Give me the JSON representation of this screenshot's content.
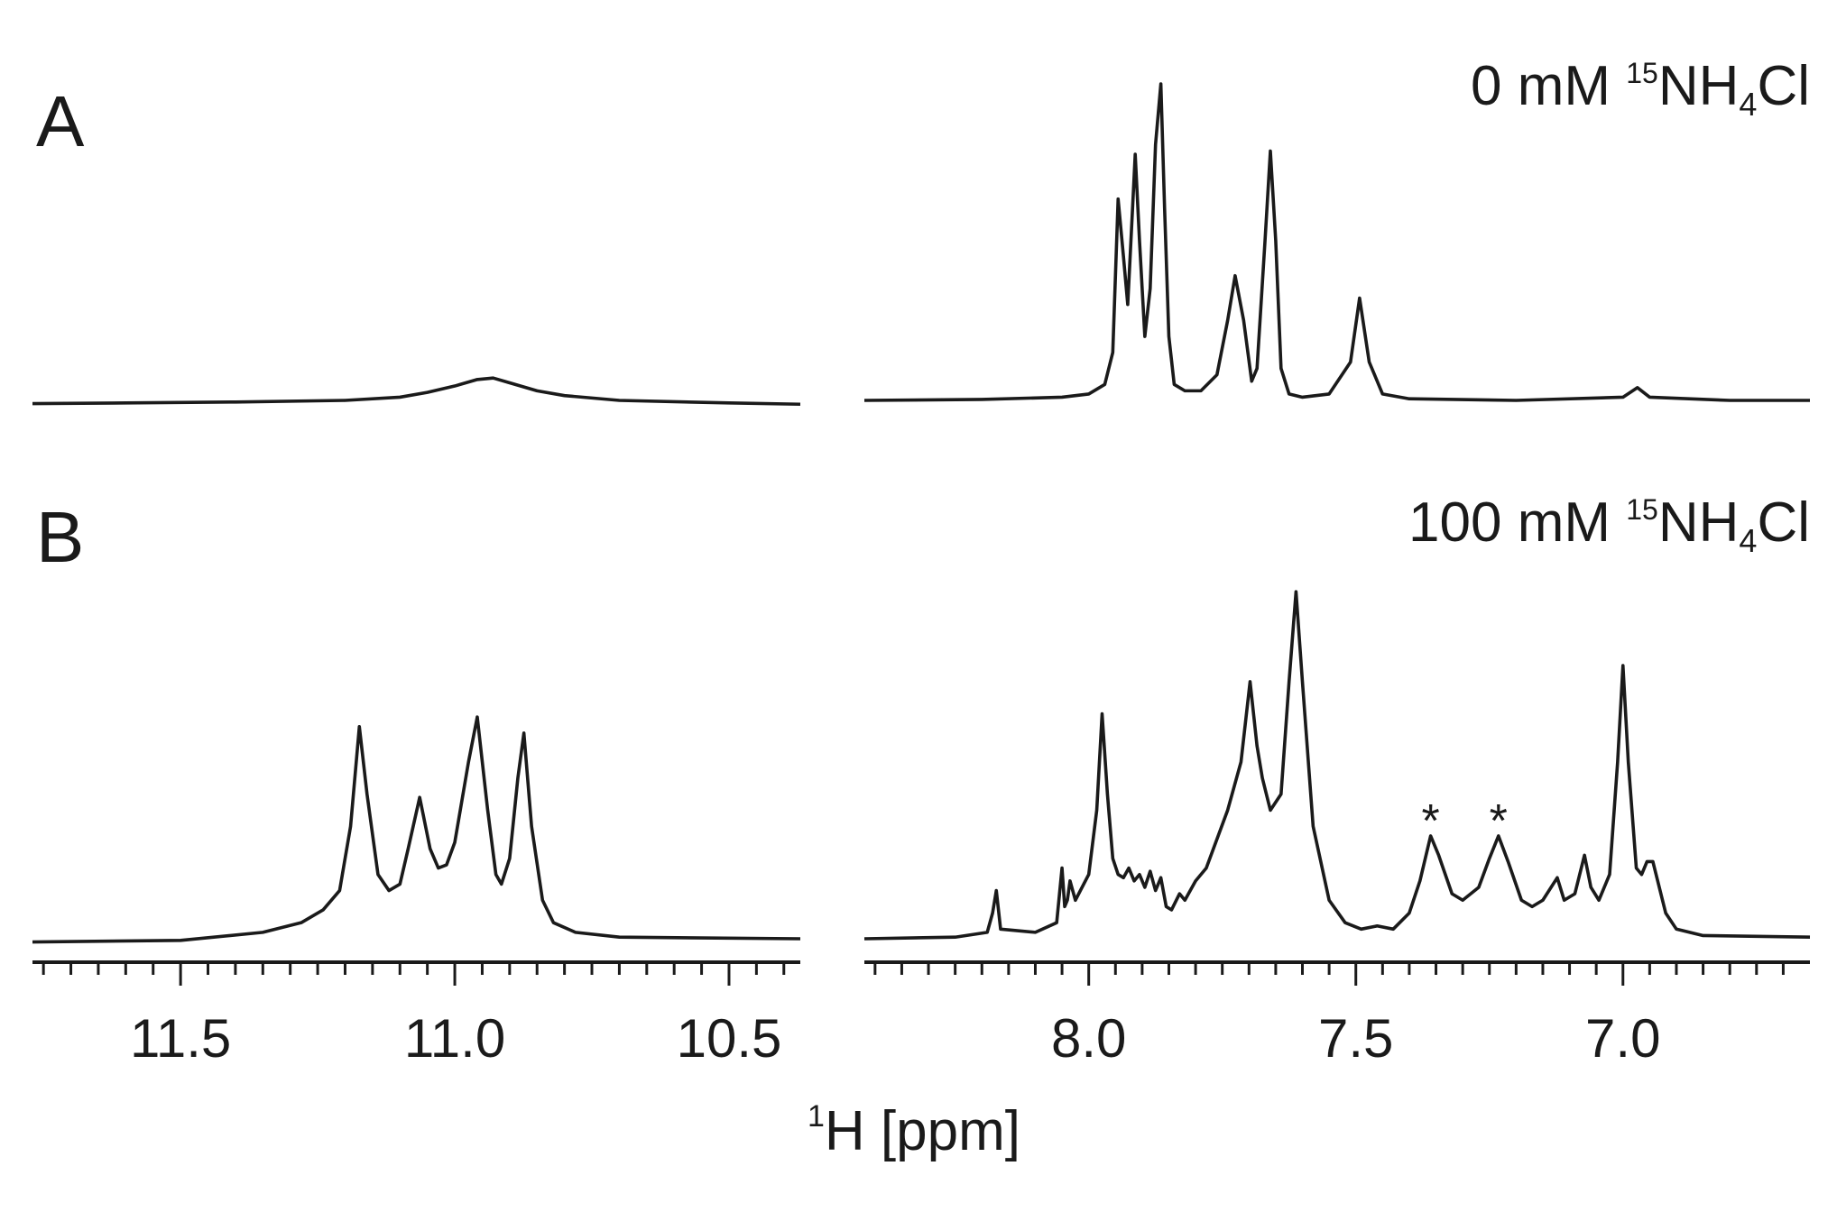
{
  "chart_data": {
    "type": "line",
    "color": "#1a1a1a",
    "xlabel_parts": [
      "1",
      "H [ppm]"
    ],
    "xaxis": [
      {
        "xlim": [
          11.77,
          10.37
        ],
        "xticks": [
          11.5,
          {
            "value": 11,
            "label": "11.0"
          },
          10.5
        ],
        "xminor": [
          11.75,
          11.7,
          11.65,
          11.6,
          11.55,
          11.45,
          11.4,
          11.35,
          11.3,
          11.25,
          11.2,
          11.15,
          11.1,
          11.05,
          10.95,
          10.9,
          10.85,
          10.8,
          10.75,
          10.7,
          10.65,
          10.6,
          10.55,
          10.45,
          10.4
        ]
      },
      {
        "xlim": [
          8.42,
          6.65
        ],
        "xticks": [
          {
            "value": 8,
            "label": "8.0"
          },
          7.5,
          {
            "value": 7,
            "label": "7.0"
          }
        ],
        "xminor": [
          8.4,
          8.35,
          8.3,
          8.25,
          8.2,
          8.15,
          8.1,
          8.05,
          7.95,
          7.9,
          7.85,
          7.8,
          7.75,
          7.7,
          7.65,
          7.6,
          7.55,
          7.45,
          7.4,
          7.35,
          7.3,
          7.25,
          7.2,
          7.15,
          7.1,
          7.05,
          6.95,
          6.9,
          6.85,
          6.8,
          6.75,
          6.7
        ]
      }
    ],
    "panels": [
      {
        "label": "A",
        "title_parts": [
          "0 mM ",
          "15",
          "NH",
          "4",
          "Cl"
        ],
        "ylim": [
          0,
          100
        ],
        "segments": [
          {
            "x": [
              11.77,
              11.6,
              11.4,
              11.2,
              11.1,
              11.05,
              11.0,
              10.96,
              10.93,
              10.9,
              10.85,
              10.8,
              10.7,
              10.5,
              10.37
            ],
            "values": [
              -1,
              -0.8,
              -0.5,
              0,
              1,
              2.5,
              4.5,
              6.5,
              7,
              5.5,
              3,
              1.5,
              0,
              -0.8,
              -1.2
            ]
          },
          {
            "x": [
              8.42,
              8.2,
              8.05,
              8.0,
              7.97,
              7.955,
              7.945,
              7.935,
              7.927,
              7.918,
              7.913,
              7.905,
              7.895,
              7.885,
              7.875,
              7.865,
              7.858,
              7.85,
              7.84,
              7.82,
              7.79,
              7.76,
              7.74,
              7.726,
              7.71,
              7.695,
              7.685,
              7.67,
              7.66,
              7.65,
              7.64,
              7.625,
              7.6,
              7.55,
              7.51,
              7.493,
              7.475,
              7.45,
              7.4,
              7.2,
              7.0,
              6.973,
              6.95,
              6.8,
              6.65
            ],
            "values": [
              0,
              0.3,
              1,
              2,
              5,
              15,
              63,
              45,
              30,
              60,
              77,
              50,
              20,
              35,
              80,
              99,
              60,
              20,
              5,
              3,
              3,
              8,
              25,
              39,
              25,
              6,
              10,
              50,
              78,
              50,
              10,
              2,
              1,
              2,
              12,
              32,
              12,
              2,
              0.5,
              0,
              1,
              4,
              1,
              0,
              0
            ]
          }
        ]
      },
      {
        "label": "B",
        "title_parts": [
          "100 mM ",
          "15",
          "NH",
          "4",
          "Cl"
        ],
        "ylim": [
          0,
          110
        ],
        "annotations": [
          {
            "text": "*",
            "x": 7.36
          },
          {
            "text": "*",
            "x": 7.233
          }
        ],
        "segments": [
          {
            "x": [
              11.77,
              11.5,
              11.35,
              11.28,
              11.24,
              11.21,
              11.19,
              11.174,
              11.16,
              11.14,
              11.12,
              11.1,
              11.085,
              11.064,
              11.045,
              11.03,
              11.015,
              11.0,
              10.975,
              10.959,
              10.94,
              10.925,
              10.915,
              10.9,
              10.885,
              10.874,
              10.86,
              10.84,
              10.82,
              10.78,
              10.7,
              10.37
            ],
            "values": [
              -1,
              -0.5,
              2,
              5,
              9,
              15,
              35,
              66,
              45,
              20,
              15,
              17,
              28,
              44,
              28,
              22,
              23,
              30,
              55,
              69,
              40,
              20,
              17,
              25,
              50,
              64,
              35,
              12,
              5,
              2,
              0.5,
              0
            ]
          },
          {
            "x": [
              8.42,
              8.25,
              8.19,
              8.18,
              8.173,
              8.165,
              8.1,
              8.06,
              8.05,
              8.045,
              8.04,
              8.035,
              8.025,
              8.0,
              7.985,
              7.975,
              7.965,
              7.955,
              7.945,
              7.935,
              7.925,
              7.915,
              7.905,
              7.895,
              7.885,
              7.875,
              7.865,
              7.855,
              7.845,
              7.83,
              7.82,
              7.8,
              7.78,
              7.74,
              7.715,
              7.698,
              7.685,
              7.675,
              7.66,
              7.64,
              7.625,
              7.612,
              7.6,
              7.58,
              7.55,
              7.52,
              7.49,
              7.46,
              7.43,
              7.4,
              7.38,
              7.36,
              7.345,
              7.32,
              7.3,
              7.27,
              7.25,
              7.233,
              7.215,
              7.19,
              7.17,
              7.15,
              7.123,
              7.11,
              7.09,
              7.072,
              7.06,
              7.045,
              7.025,
              7.01,
              7.0,
              6.99,
              6.975,
              6.965,
              6.955,
              6.944,
              6.935,
              6.92,
              6.9,
              6.85,
              6.65
            ],
            "values": [
              0,
              0.5,
              2,
              8,
              15,
              3,
              2,
              5,
              22,
              10,
              12,
              18,
              12,
              20,
              40,
              70,
              45,
              25,
              20,
              19,
              22,
              18,
              20,
              16,
              21,
              15,
              19,
              10,
              9,
              14,
              12,
              18,
              22,
              40,
              55,
              80,
              60,
              50,
              40,
              45,
              80,
              108,
              80,
              35,
              12,
              5,
              3,
              4,
              3,
              8,
              18,
              32,
              26,
              14,
              12,
              16,
              25,
              32,
              24,
              12,
              10,
              12,
              19,
              12,
              14,
              26,
              16,
              12,
              20,
              55,
              85,
              55,
              22,
              20,
              24,
              24,
              18,
              8,
              3,
              1,
              0.5
            ]
          }
        ]
      }
    ]
  }
}
